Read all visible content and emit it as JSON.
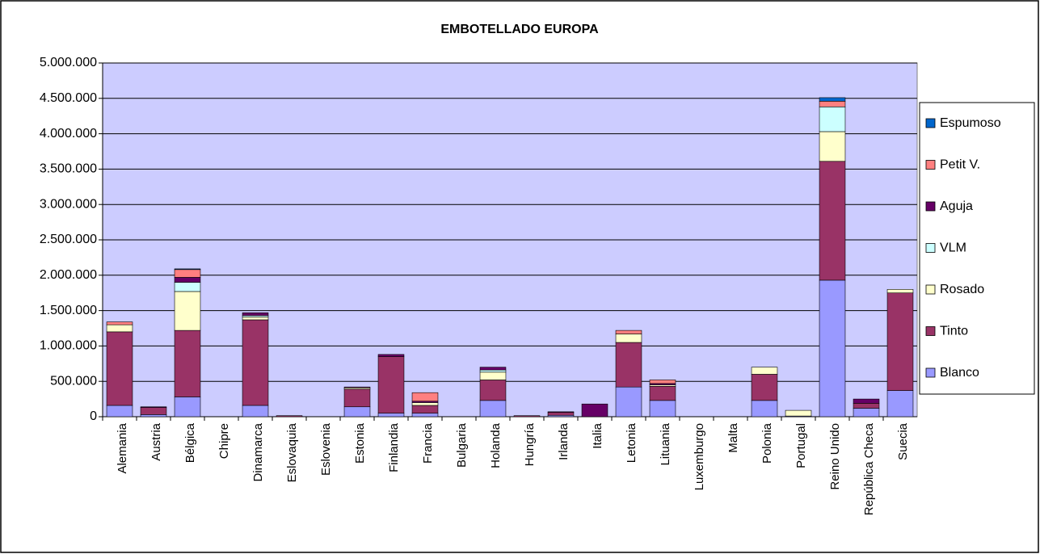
{
  "chart_data": {
    "type": "stacked_bar",
    "title": "EMBOTELLADO EUROPA",
    "categories": [
      "Alemania",
      "Austria",
      "Bélgica",
      "Chipre",
      "Dinamarca",
      "Eslovaquia",
      "Eslovenia",
      "Estonia",
      "Finlandia",
      "Francia",
      "Bulgaria",
      "Holanda",
      "Hungría",
      "Irlanda",
      "Italia",
      "Letonia",
      "Lituania",
      "Luxemburgo",
      "Malta",
      "Polonia",
      "Portugal",
      "Reino Unido",
      "República Checa",
      "Suecia"
    ],
    "series": [
      {
        "name": "Blanco",
        "color": "#9999ff",
        "values": [
          160000,
          30000,
          280000,
          0,
          160000,
          0,
          0,
          140000,
          50000,
          50000,
          0,
          230000,
          0,
          20000,
          0,
          420000,
          230000,
          0,
          0,
          230000,
          10000,
          1930000,
          120000,
          370000
        ]
      },
      {
        "name": "Tinto",
        "color": "#993366",
        "values": [
          1040000,
          100000,
          940000,
          0,
          1210000,
          15000,
          0,
          250000,
          800000,
          110000,
          0,
          290000,
          15000,
          40000,
          0,
          630000,
          200000,
          0,
          0,
          370000,
          0,
          1680000,
          70000,
          1380000
        ]
      },
      {
        "name": "Rosado",
        "color": "#ffffcc",
        "values": [
          100000,
          0,
          550000,
          0,
          40000,
          0,
          0,
          20000,
          0,
          40000,
          0,
          110000,
          0,
          0,
          0,
          120000,
          20000,
          0,
          0,
          100000,
          80000,
          420000,
          0,
          50000
        ]
      },
      {
        "name": "VLM",
        "color": "#ccffff",
        "values": [
          0,
          0,
          130000,
          0,
          20000,
          0,
          0,
          0,
          0,
          0,
          0,
          30000,
          0,
          0,
          0,
          0,
          0,
          0,
          0,
          0,
          0,
          350000,
          0,
          0
        ]
      },
      {
        "name": "Aguja",
        "color": "#660066",
        "values": [
          0,
          10000,
          70000,
          0,
          40000,
          0,
          0,
          10000,
          30000,
          20000,
          0,
          40000,
          0,
          10000,
          180000,
          0,
          20000,
          0,
          0,
          0,
          0,
          0,
          60000,
          0
        ]
      },
      {
        "name": "Petit V.",
        "color": "#ff8080",
        "values": [
          40000,
          0,
          110000,
          0,
          0,
          0,
          0,
          0,
          0,
          120000,
          0,
          0,
          0,
          0,
          0,
          50000,
          50000,
          0,
          0,
          0,
          0,
          80000,
          0,
          0
        ]
      },
      {
        "name": "Espumoso",
        "color": "#0066cc",
        "values": [
          0,
          0,
          10000,
          0,
          0,
          0,
          0,
          0,
          0,
          0,
          0,
          0,
          0,
          0,
          0,
          0,
          0,
          0,
          0,
          0,
          0,
          50000,
          0,
          0
        ]
      }
    ],
    "ylim": [
      0,
      5000000
    ],
    "yticks": [
      0,
      {
        "value": 500000,
        "label": "500.000"
      },
      {
        "value": 1000000,
        "label": "1.000.000"
      },
      {
        "value": 1500000,
        "label": "1.500.000"
      },
      {
        "value": 2000000,
        "label": "2.000.000"
      },
      {
        "value": 2500000,
        "label": "2.500.000"
      },
      {
        "value": 3000000,
        "label": "3.000.000"
      },
      {
        "value": 3500000,
        "label": "3.500.000"
      },
      {
        "value": 4000000,
        "label": "4.000.000"
      },
      {
        "value": 4500000,
        "label": "4.500.000"
      },
      {
        "value": 5000000,
        "label": "5.000.000"
      }
    ],
    "grid": true,
    "legend": "right"
  }
}
